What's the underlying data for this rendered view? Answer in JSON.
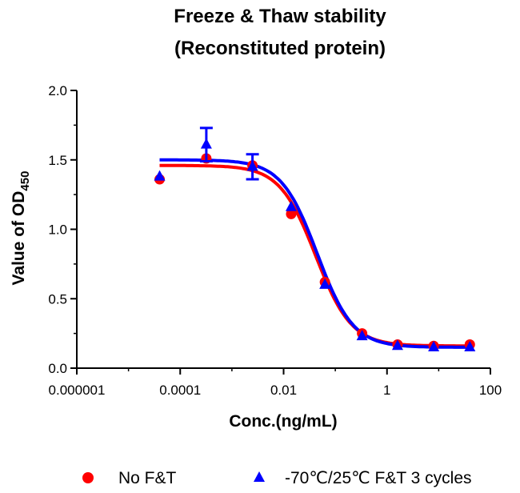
{
  "chart_data": {
    "type": "scatter",
    "title_lines": [
      "Freeze & Thaw stability",
      "(Reconstituted protein)"
    ],
    "xlabel": "Conc.(ng/mL)",
    "ylabel_main": "Value of OD",
    "ylabel_sub": "450",
    "xscale": "log",
    "xlim": [
      1e-06,
      100
    ],
    "ylim": [
      0.0,
      2.0
    ],
    "x_ticks": [
      1e-06,
      0.0001,
      0.01,
      1,
      100
    ],
    "x_tick_labels": [
      "0.000001",
      "0.0001",
      "0.01",
      "1",
      "100"
    ],
    "y_ticks": [
      0.0,
      0.5,
      1.0,
      1.5,
      2.0
    ],
    "y_tick_labels": [
      "0.0",
      "0.5",
      "1.0",
      "1.5",
      "2.0"
    ],
    "x": [
      4e-05,
      0.00032,
      0.0025,
      0.014,
      0.063,
      0.33,
      1.6,
      8.0,
      40.0
    ],
    "series": [
      {
        "name": "No F&T",
        "color": "#ff0000",
        "marker": "circle",
        "values": [
          1.36,
          1.51,
          1.46,
          1.11,
          0.62,
          0.25,
          0.17,
          0.16,
          0.17
        ],
        "fit": {
          "top": 1.46,
          "bottom": 0.16,
          "logec50": -1.38,
          "hill": 1.25
        }
      },
      {
        "name": "-70℃/25℃ F&T 3 cycles",
        "color": "#0000ff",
        "marker": "triangle",
        "values": [
          1.38,
          1.61,
          1.45,
          1.16,
          0.6,
          0.23,
          0.16,
          0.15,
          0.15
        ],
        "errors": [
          0,
          0.12,
          0.09,
          0,
          0,
          0,
          0,
          0,
          0
        ],
        "fit": {
          "top": 1.5,
          "bottom": 0.15,
          "logec50": -1.35,
          "hill": 1.25
        }
      }
    ],
    "legend_position": "bottom"
  }
}
